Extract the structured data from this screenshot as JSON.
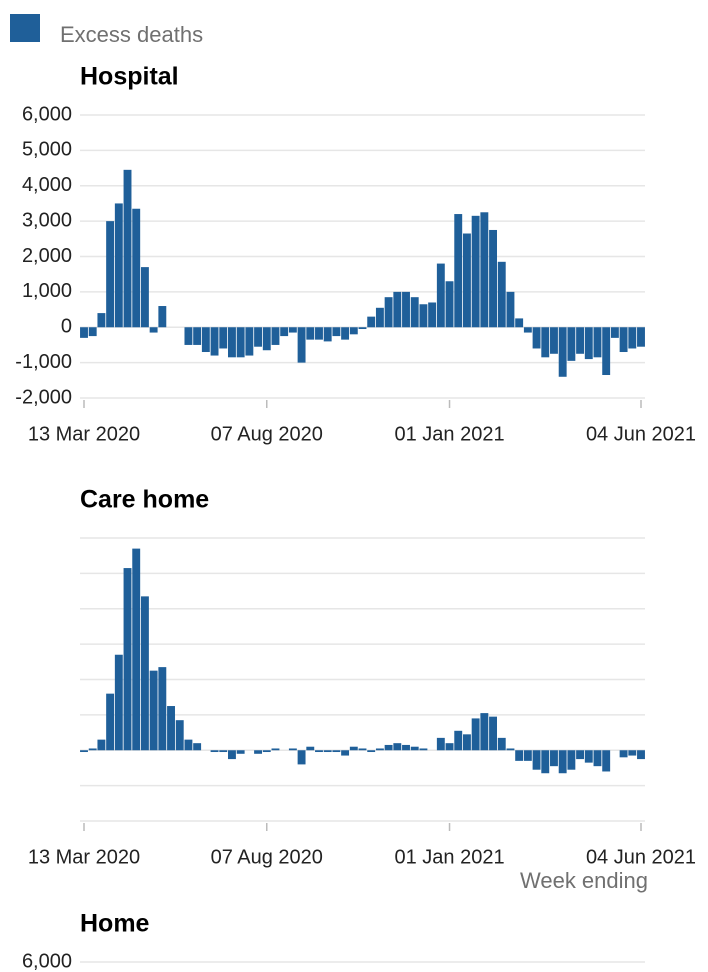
{
  "chart_data": [
    {
      "type": "bar",
      "title": "Hospital",
      "categories": [
        "13 Mar 2020",
        null,
        null,
        null,
        null,
        null,
        null,
        null,
        null,
        null,
        null,
        null,
        null,
        null,
        null,
        null,
        null,
        null,
        null,
        null,
        null,
        "07 Aug 2020",
        null,
        null,
        null,
        null,
        null,
        null,
        null,
        null,
        null,
        null,
        null,
        null,
        null,
        null,
        null,
        null,
        null,
        null,
        null,
        null,
        "01 Jan 2021",
        null,
        null,
        null,
        null,
        null,
        null,
        null,
        null,
        null,
        null,
        null,
        null,
        null,
        null,
        null,
        null,
        null,
        null,
        null,
        null,
        null,
        "04 Jun 2021"
      ],
      "series": [
        {
          "name": "Excess deaths",
          "color": "#1f5f99",
          "values": [
            -300,
            -250,
            400,
            3000,
            3500,
            4450,
            3350,
            1700,
            -150,
            600,
            0,
            0,
            -500,
            -500,
            -700,
            -800,
            -600,
            -850,
            -850,
            -800,
            -550,
            -650,
            -500,
            -250,
            -150,
            -1000,
            -350,
            -350,
            -400,
            -250,
            -350,
            -200,
            -50,
            300,
            550,
            850,
            1000,
            1000,
            850,
            650,
            700,
            1800,
            1300,
            3200,
            2650,
            3150,
            3250,
            2750,
            1850,
            1000,
            250,
            -150,
            -600,
            -850,
            -750,
            -1400,
            -950,
            -750,
            -900,
            -850,
            -1350,
            -300,
            -700,
            -600,
            -550
          ]
        }
      ],
      "ylim": [
        -2000,
        6000
      ],
      "yticks": [
        {
          "value": -2000,
          "label": "-2,000"
        },
        {
          "value": -1000,
          "label": "-1,000"
        },
        0,
        {
          "value": 1000,
          "label": "1,000"
        },
        {
          "value": 2000,
          "label": "2,000"
        },
        {
          "value": 3000,
          "label": "3,000"
        },
        {
          "value": 4000,
          "label": "4,000"
        },
        {
          "value": 5000,
          "label": "5,000"
        },
        {
          "value": 6000,
          "label": "6,000"
        }
      ],
      "grid": true,
      "show_ytick_labels": true
    },
    {
      "type": "bar",
      "title": "Care home",
      "xlabel": "Week ending",
      "categories": [
        "13 Mar 2020",
        null,
        null,
        null,
        null,
        null,
        null,
        null,
        null,
        null,
        null,
        null,
        null,
        null,
        null,
        null,
        null,
        null,
        null,
        null,
        null,
        "07 Aug 2020",
        null,
        null,
        null,
        null,
        null,
        null,
        null,
        null,
        null,
        null,
        null,
        null,
        null,
        null,
        null,
        null,
        null,
        null,
        null,
        null,
        "01 Jan 2021",
        null,
        null,
        null,
        null,
        null,
        null,
        null,
        null,
        null,
        null,
        null,
        null,
        null,
        null,
        null,
        null,
        null,
        null,
        null,
        null,
        null,
        "04 Jun 2021"
      ],
      "series": [
        {
          "name": "Excess deaths",
          "color": "#1f5f99",
          "values": [
            -50,
            50,
            300,
            1600,
            2700,
            5150,
            5700,
            4350,
            2250,
            2350,
            1250,
            850,
            300,
            200,
            0,
            -50,
            -50,
            -250,
            -100,
            0,
            -100,
            -50,
            50,
            0,
            50,
            -400,
            100,
            -50,
            -50,
            -50,
            -150,
            100,
            50,
            -50,
            50,
            150,
            200,
            150,
            100,
            50,
            0,
            350,
            200,
            550,
            450,
            900,
            1050,
            950,
            350,
            50,
            -300,
            -300,
            -550,
            -650,
            -450,
            -650,
            -550,
            -250,
            -350,
            -450,
            -600,
            0,
            -200,
            -150,
            -250
          ]
        }
      ],
      "ylim": [
        -2000,
        6000
      ],
      "yticks": [
        -2000,
        -1000,
        0,
        1000,
        2000,
        3000,
        4000,
        5000,
        6000
      ],
      "grid": true,
      "show_ytick_labels": false
    },
    {
      "type": "bar",
      "title": "Home",
      "ylim": [
        -2000,
        6000
      ],
      "yticks": [
        {
          "value": 6000,
          "label": "6,000"
        }
      ],
      "grid": true,
      "show_ytick_labels": true
    }
  ]
}
